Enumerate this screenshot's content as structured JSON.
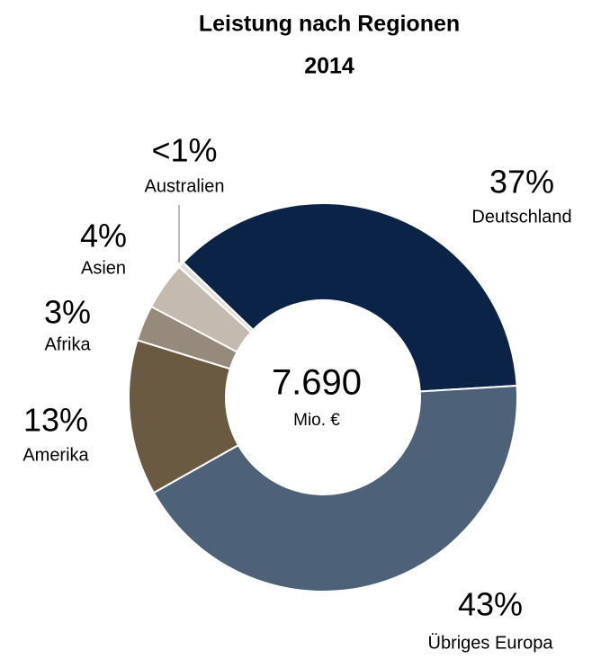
{
  "chart_data": {
    "type": "donut",
    "title": "Leistung nach Regionen",
    "subtitle": "2014",
    "categories": [
      "Deutschland",
      "Übriges Europa",
      "Amerika",
      "Afrika",
      "Asien",
      "Australien"
    ],
    "values": [
      37,
      43,
      13,
      3,
      4,
      0.5
    ],
    "value_labels": [
      "37%",
      "43%",
      "13%",
      "3%",
      "4%",
      "<1%"
    ],
    "colors": [
      "#0b2346",
      "#4d6179",
      "#6b5a42",
      "#958a7b",
      "#c4bab0",
      "#e2deda"
    ],
    "center_label": "7.690",
    "center_sublabel": "Mio. €"
  }
}
